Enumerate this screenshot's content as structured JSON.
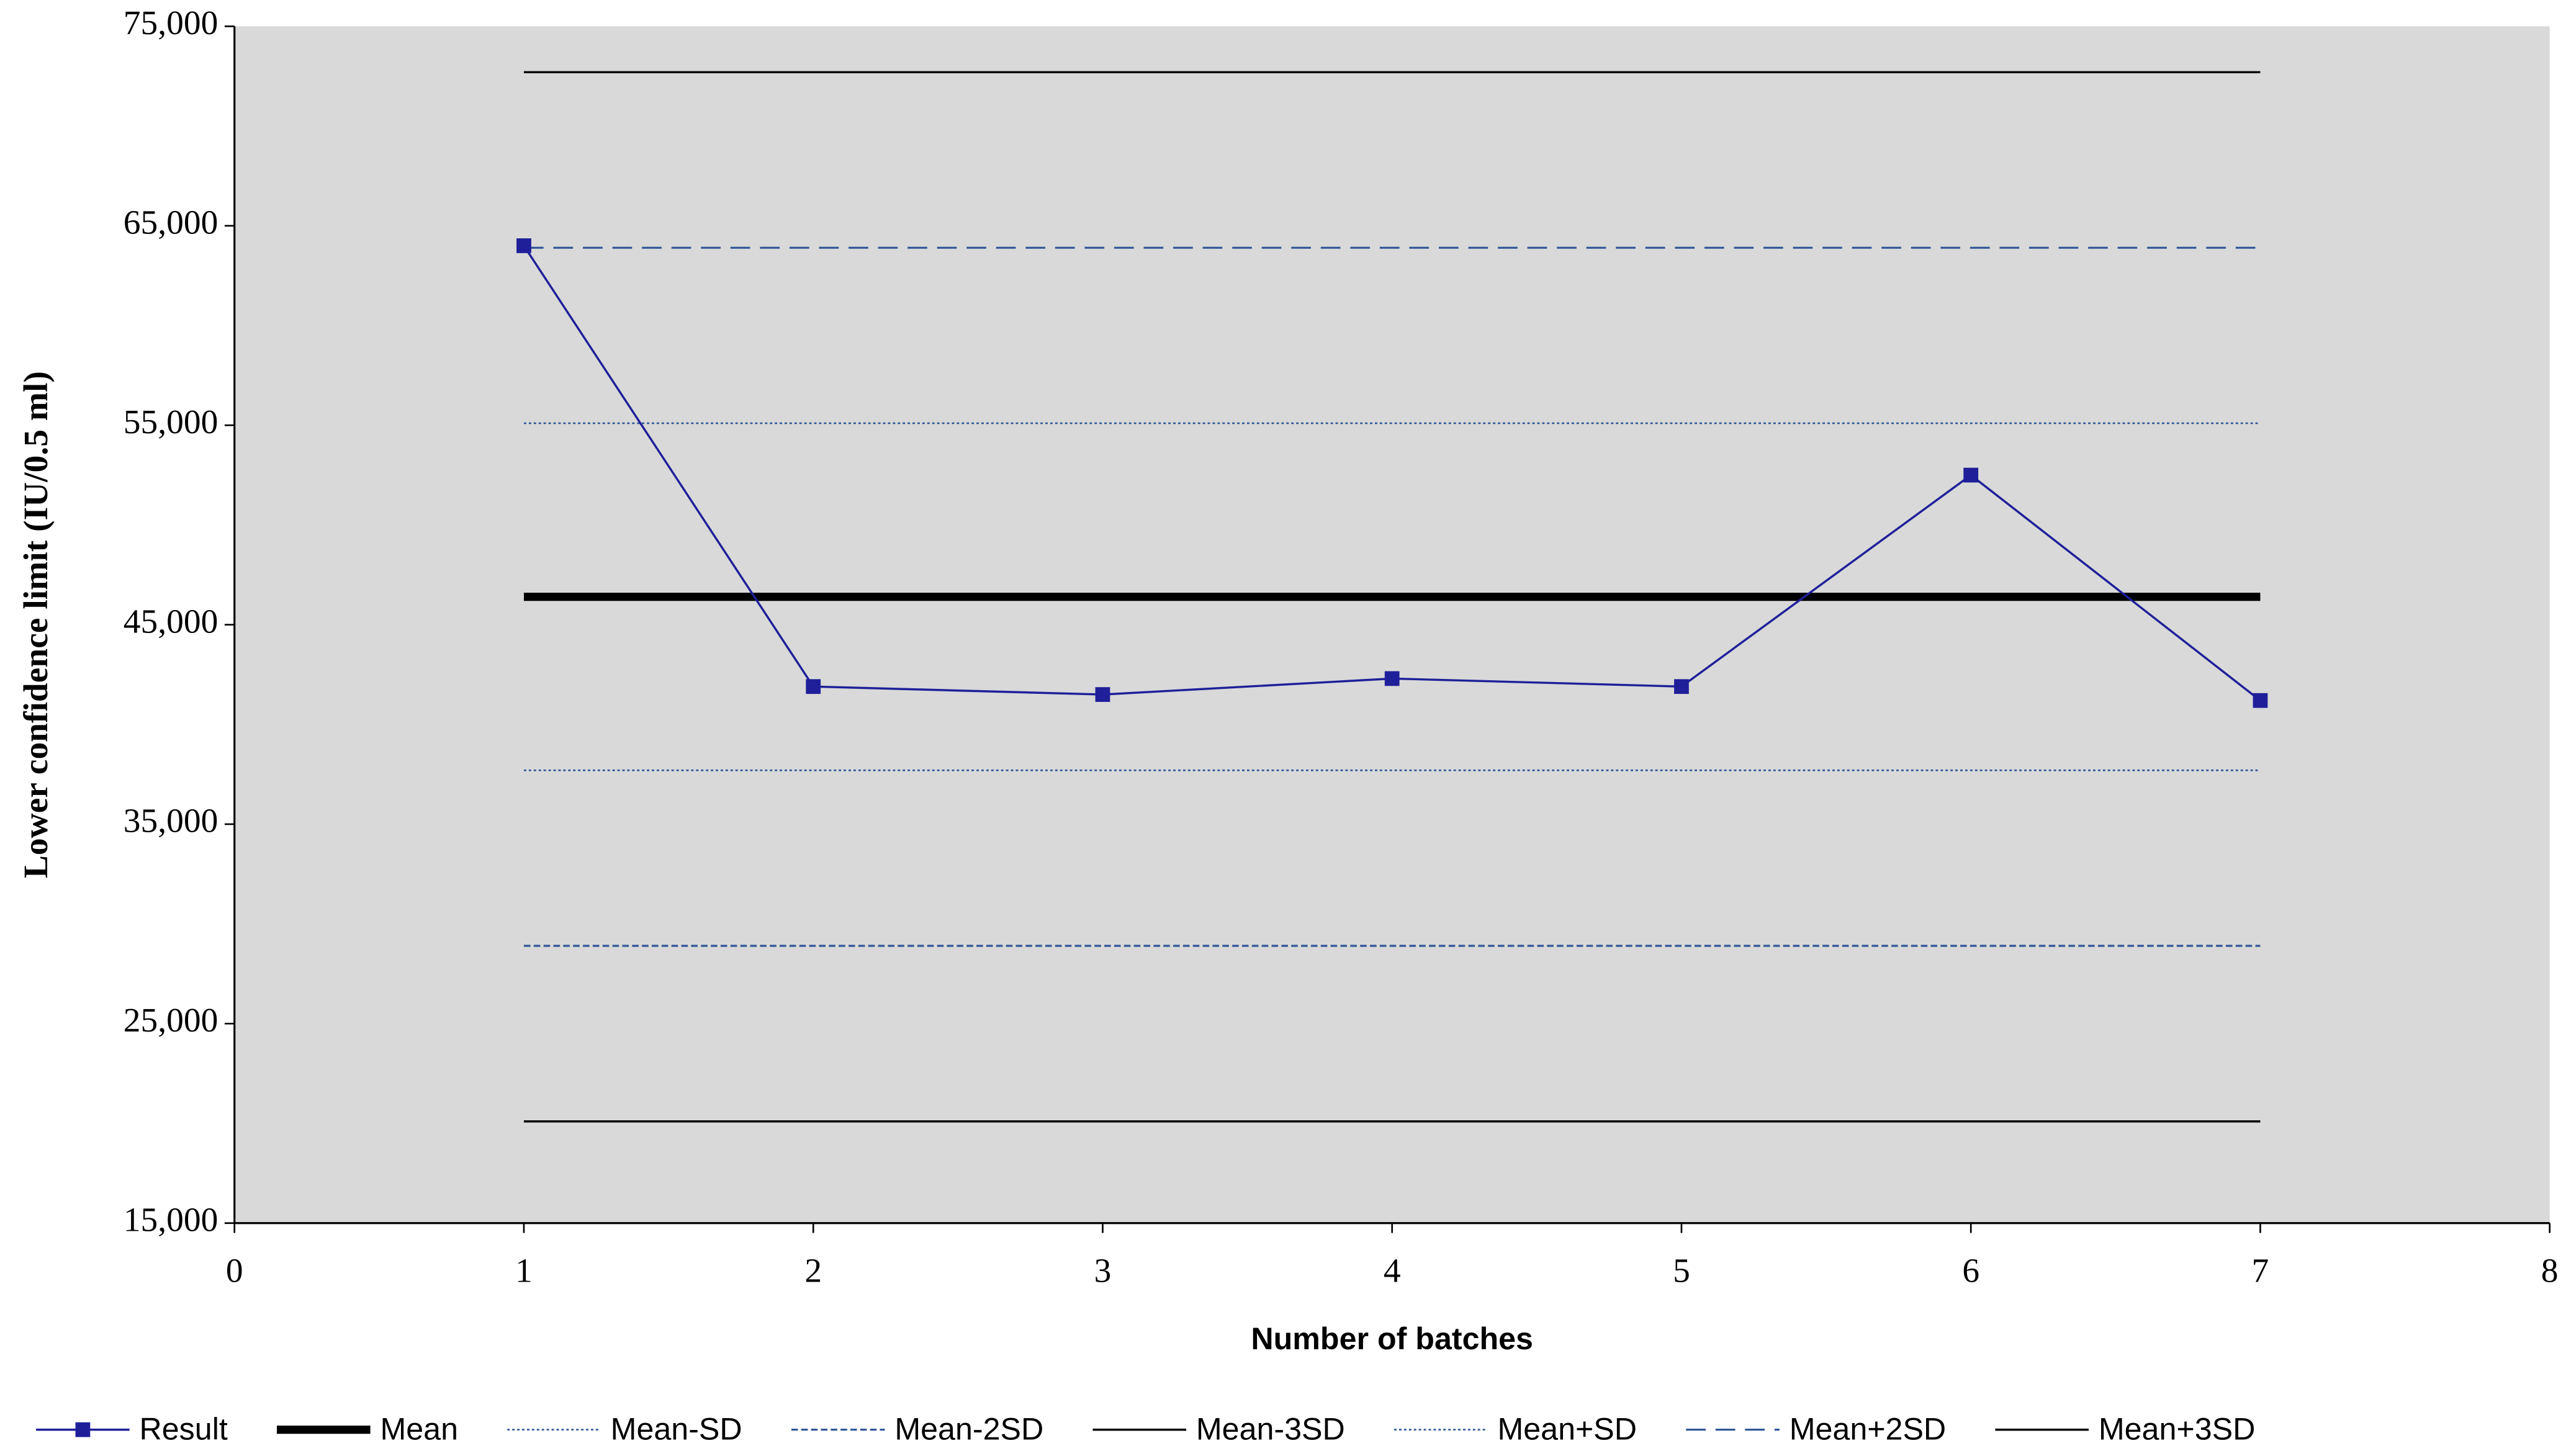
{
  "chart_data": {
    "type": "line",
    "x_label": "Number of batches",
    "y_label": "Lower confidence limit (IU/0.5 ml)",
    "x": [
      1,
      2,
      3,
      4,
      5,
      6,
      7
    ],
    "xlim": [
      0,
      8
    ],
    "xticks": [
      0,
      1,
      2,
      3,
      4,
      5,
      6,
      7,
      8
    ],
    "ylim": [
      15000,
      75000
    ],
    "yticks": [
      {
        "value": 15000,
        "label": "15,000"
      },
      {
        "value": 25000,
        "label": "25,000"
      },
      {
        "value": 35000,
        "label": "35,000"
      },
      {
        "value": 45000,
        "label": "45,000"
      },
      {
        "value": 55000,
        "label": "55,000"
      },
      {
        "value": 65000,
        "label": "65,000"
      },
      {
        "value": 75000,
        "label": "75,000"
      }
    ],
    "grid": false,
    "plot_background": "#d9d9d9",
    "legend": "bottom",
    "series": [
      {
        "name": "Result",
        "color": "#1f1f9a",
        "width": 1.3,
        "dash": "none",
        "marker": "square",
        "values": [
          64000,
          41900,
          41500,
          42300,
          41900,
          52500,
          41200
        ]
      },
      {
        "name": "Mean",
        "color": "#000000",
        "width": 5,
        "dash": "none",
        "values": [
          46400,
          46400,
          46400,
          46400,
          46400,
          46400,
          46400
        ]
      },
      {
        "name": "Mean-SD",
        "color": "#2f5597",
        "width": 1,
        "dash": "1.5 1.5",
        "values": [
          37700,
          37700,
          37700,
          37700,
          37700,
          37700,
          37700
        ]
      },
      {
        "name": "Mean-2SD",
        "color": "#2f5597",
        "width": 1.2,
        "dash": "4 2",
        "values": [
          28900,
          28900,
          28900,
          28900,
          28900,
          28900,
          28900
        ]
      },
      {
        "name": "Mean-3SD",
        "color": "#000000",
        "width": 1.3,
        "dash": "none",
        "values": [
          20100,
          20100,
          20100,
          20100,
          20100,
          20100,
          20100
        ]
      },
      {
        "name": "Mean+SD",
        "color": "#2f5597",
        "width": 1,
        "dash": "1.5 1.5",
        "values": [
          55100,
          55100,
          55100,
          55100,
          55100,
          55100,
          55100
        ]
      },
      {
        "name": "Mean+2SD",
        "color": "#2f5597",
        "width": 1.2,
        "dash": "12 6",
        "values": [
          63900,
          63900,
          63900,
          63900,
          63900,
          63900,
          63900
        ]
      },
      {
        "name": "Mean+3SD",
        "color": "#000000",
        "width": 1.3,
        "dash": "none",
        "values": [
          72700,
          72700,
          72700,
          72700,
          72700,
          72700,
          72700
        ]
      }
    ]
  }
}
